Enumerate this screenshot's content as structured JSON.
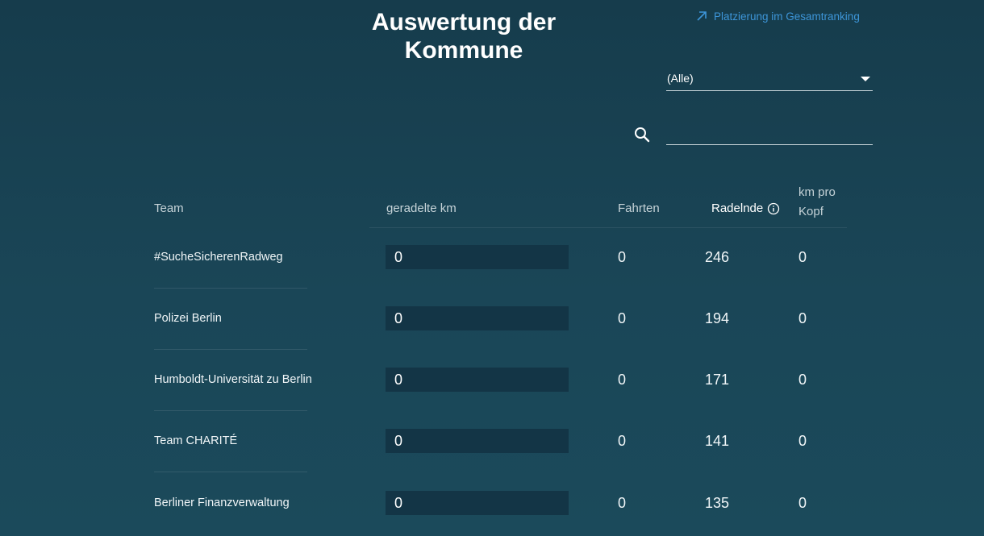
{
  "page": {
    "title_line1": "Auswertung der",
    "title_line2": "Kommune",
    "ranking_link": "Platzierung im Gesamtranking"
  },
  "filter": {
    "selected": "(Alle)"
  },
  "search": {
    "value": "",
    "placeholder": ""
  },
  "table": {
    "headers": {
      "team": "Team",
      "km": "geradelte km",
      "fahrten": "Fahrten",
      "radelnde": "Radelnde",
      "km_pro_kopf_line1": "km pro",
      "km_pro_kopf_line2": "Kopf"
    },
    "rows": [
      {
        "team": "#SucheSicherenRadweg",
        "km": "0",
        "fahrten": "0",
        "radelnde": "246",
        "km_pro_kopf": "0"
      },
      {
        "team": "Polizei Berlin",
        "km": "0",
        "fahrten": "0",
        "radelnde": "194",
        "km_pro_kopf": "0"
      },
      {
        "team": "Humboldt-Universität zu Berlin",
        "km": "0",
        "fahrten": "0",
        "radelnde": "171",
        "km_pro_kopf": "0"
      },
      {
        "team": "Team CHARITÉ",
        "km": "0",
        "fahrten": "0",
        "radelnde": "141",
        "km_pro_kopf": "0"
      },
      {
        "team": "Berliner Finanzverwaltung",
        "km": "0",
        "fahrten": "0",
        "radelnde": "135",
        "km_pro_kopf": "0"
      }
    ]
  },
  "icons": {
    "ranking": "arrow-up-right-icon",
    "dropdown": "caret-down-icon",
    "search": "search-icon",
    "info": "info-icon"
  },
  "colors": {
    "background": "#1a4455",
    "link": "#3d95d8",
    "km_box": "#133546"
  }
}
